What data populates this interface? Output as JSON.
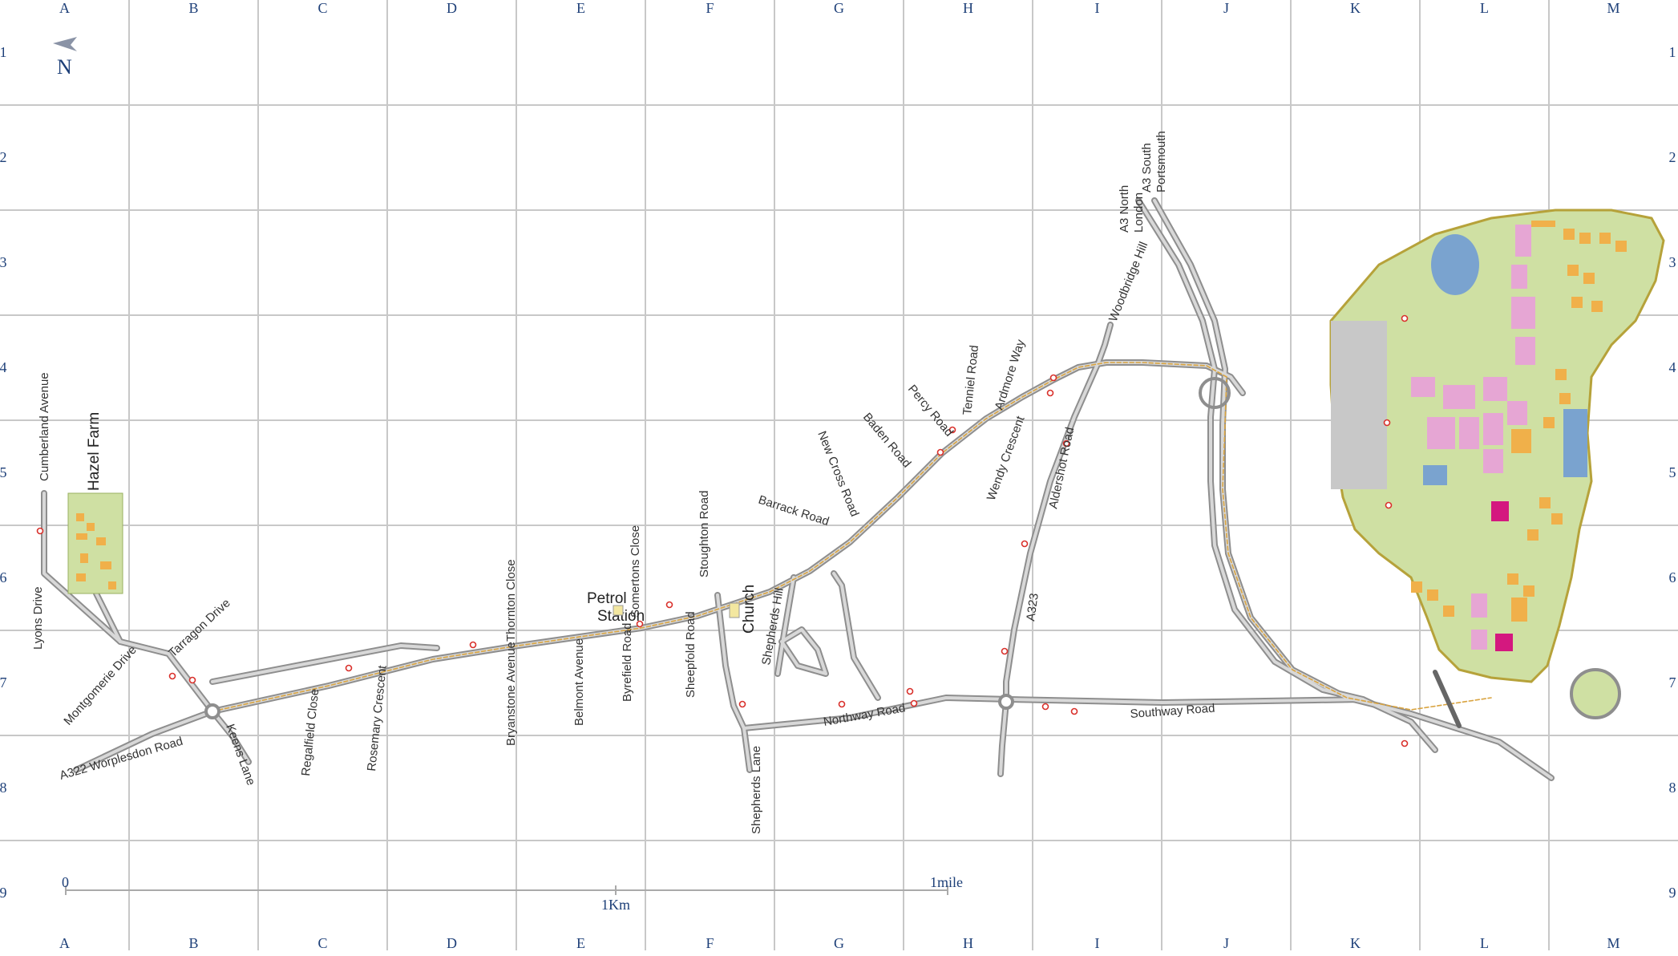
{
  "grid": {
    "columns": [
      "A",
      "B",
      "C",
      "D",
      "E",
      "F",
      "G",
      "H",
      "I",
      "J",
      "K",
      "L",
      "M"
    ],
    "rows": [
      "1",
      "2",
      "3",
      "4",
      "5",
      "6",
      "7",
      "8",
      "9"
    ]
  },
  "north": "N",
  "places": {
    "hazel_farm": "Hazel Farm",
    "petrol_station_line1": "Petrol",
    "petrol_station_line2": "Station",
    "church": "Church",
    "a3_north_line1": "A3 North",
    "a3_north_line2": "London",
    "a3_south_line1": "A3 South",
    "a3_south_line2": "Portsmouth"
  },
  "roads": {
    "cumberland_avenue": "Cumberland Avenue",
    "lyons_drive": "Lyons Drive",
    "montgomerie_drive": "Montgomerie Drive",
    "tarragon_drive": "Tarragon Drive",
    "worplesdon_road": "A322  Worplesdon Road",
    "keens_lane": "Keens Lane",
    "regalfield_close": "Regalfield Close",
    "rosemary_crescent": "Rosemary Crescent",
    "bryanstone_avenue": "Bryanstone Avenue",
    "thornton_close": "Thornton Close",
    "belmont_avenue": "Belmont Avenue",
    "byrefield_road": "Byrefield Road",
    "somertons_close": "Somertons Close",
    "sheepfold_road": "Sheepfold Road",
    "stoughton_road": "Stoughton Road",
    "shepherds_hill": "Shepherds Hill",
    "shepherds_lane": "Shepherds Lane",
    "northway_road": "Northway Road",
    "southway_road": "Southway Road",
    "barrack_road": "Barrack Road",
    "new_cross_road": "New Cross Road",
    "baden_road": "Baden Road",
    "percy_road": "Percy Road",
    "tenniel_road": "Tenniel Road",
    "ardmore_way": "Ardmore Way",
    "wendy_crescent": "Wendy Crescent",
    "aldershot_road": "Aldershot Road",
    "a323": "A323",
    "woodbridge_hill": "Woodbridge Hill"
  },
  "scale": {
    "zero": "0",
    "one_km": "1Km",
    "one_mile": "1mile"
  },
  "colors": {
    "grid_line": "#c8c8c8",
    "grid_label": "#1d3f78",
    "road_fill": "#9a9a9a",
    "main_route": "#d9a441",
    "campus_green": "#cfe0a3",
    "campus_outline": "#b6a23a",
    "building_pink": "#e6a6d4",
    "building_orange": "#f0b04a",
    "lake_blue": "#7aa3cf",
    "car_park_grey": "#c8c8c8",
    "stop_red": "#d9302b"
  }
}
